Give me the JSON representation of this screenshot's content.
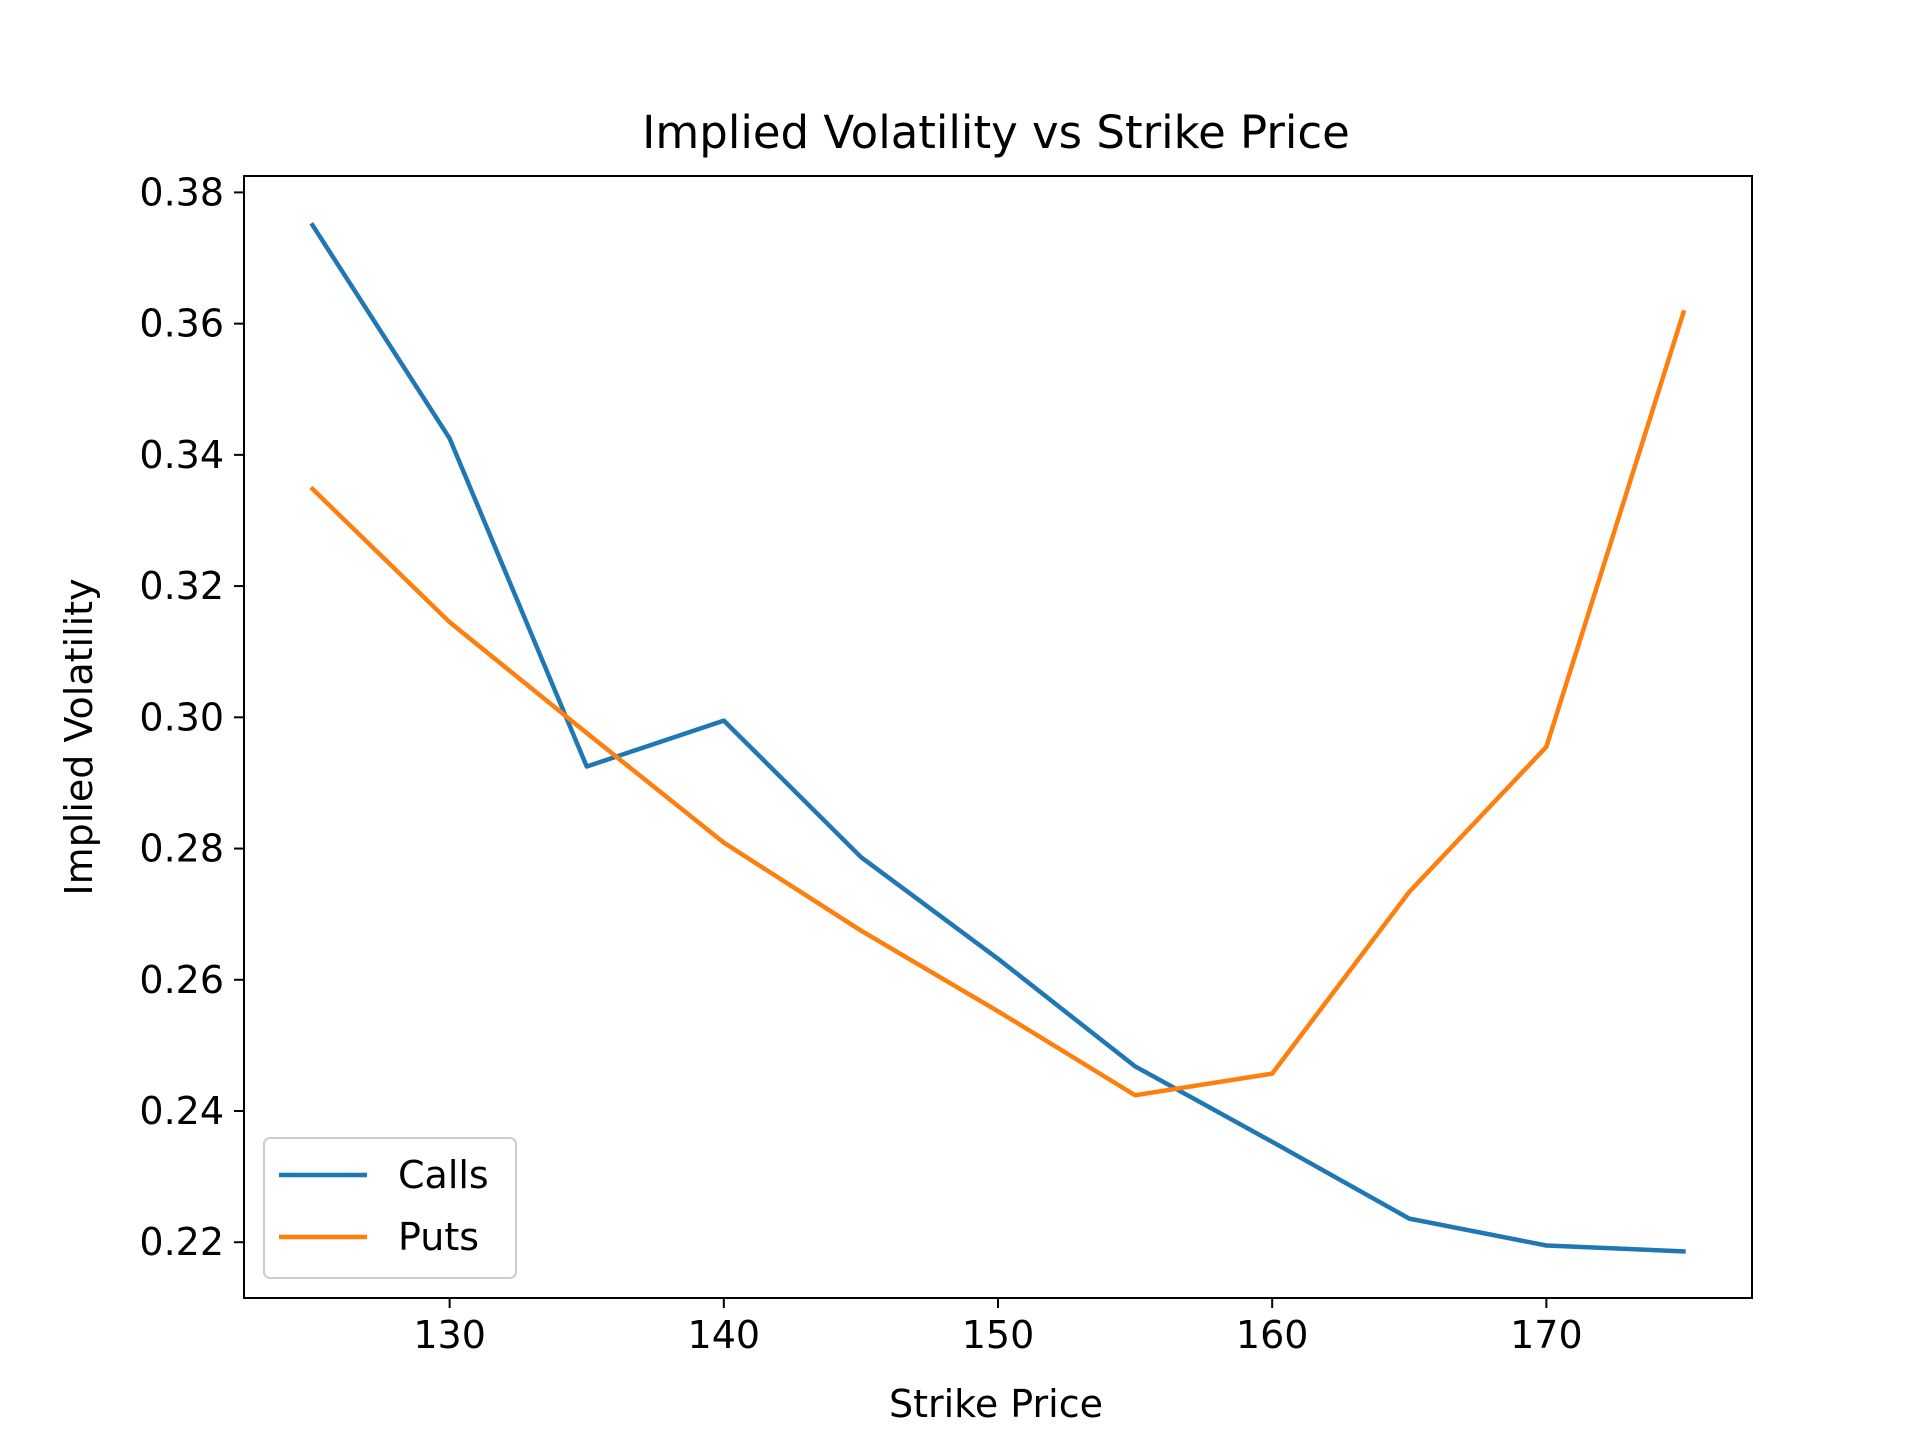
{
  "chart_data": {
    "type": "line",
    "title": "Implied Volatility vs Strike Price",
    "xlabel": "Strike Price",
    "ylabel": "Implied Volatility",
    "xlim": [
      122.5,
      177.5
    ],
    "ylim": [
      0.2115,
      0.3825
    ],
    "xticks": [
      130,
      140,
      150,
      160,
      170
    ],
    "yticks": [
      0.22,
      0.24,
      0.26,
      0.28,
      0.3,
      0.32,
      0.34,
      0.36,
      0.38
    ],
    "xtick_labels": [
      "130",
      "140",
      "150",
      "160",
      "170"
    ],
    "ytick_labels": [
      "0.22",
      "0.24",
      "0.26",
      "0.28",
      "0.30",
      "0.32",
      "0.34",
      "0.36",
      "0.38"
    ],
    "grid": false,
    "legend_position": "lower-left",
    "x": [
      125,
      130,
      135,
      140,
      145,
      150,
      155,
      160,
      165,
      170,
      175
    ],
    "series": [
      {
        "name": "Calls",
        "color": "#1f77b4",
        "values": [
          0.375,
          0.3425,
          0.2925,
          0.2995,
          0.2787,
          0.2632,
          0.2468,
          0.2353,
          0.2236,
          0.2195,
          0.2186
        ]
      },
      {
        "name": "Puts",
        "color": "#ff7f0e",
        "values": [
          0.3348,
          0.3145,
          0.2976,
          0.2809,
          0.2675,
          0.2552,
          0.2424,
          0.2457,
          0.2734,
          0.2955,
          0.3617
        ]
      }
    ]
  }
}
